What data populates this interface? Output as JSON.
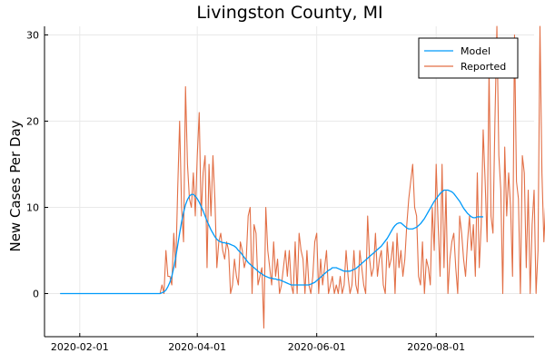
{
  "chart_data": {
    "type": "line",
    "title": "Livingston County, MI",
    "xlabel": "",
    "ylabel": "New Cases Per Day",
    "x_start": "2020-01-22",
    "xlim": [
      "2020-01-14",
      "2020-09-20"
    ],
    "ylim": [
      -5,
      31
    ],
    "yticks": [
      0,
      10,
      20,
      30
    ],
    "xticks": [
      "2020-02-01",
      "2020-04-01",
      "2020-06-01",
      "2020-08-01"
    ],
    "grid": true,
    "legend": {
      "position": "top-right"
    },
    "series": [
      {
        "name": "Model",
        "color": "#009AFA",
        "values": [
          0,
          0,
          0,
          0,
          0,
          0,
          0,
          0,
          0,
          0,
          0,
          0,
          0,
          0,
          0,
          0,
          0,
          0,
          0,
          0,
          0,
          0,
          0,
          0,
          0,
          0,
          0,
          0,
          0,
          0,
          0,
          0,
          0,
          0,
          0,
          0,
          0,
          0,
          0,
          0,
          0,
          0,
          0,
          0,
          0,
          0,
          0,
          0,
          0,
          0,
          0,
          0,
          0.1,
          0.2,
          0.4,
          0.8,
          1.3,
          2.0,
          3.0,
          4.2,
          5.6,
          7.0,
          8.3,
          9.4,
          10.3,
          10.9,
          11.3,
          11.5,
          11.5,
          11.3,
          11.0,
          10.6,
          10.1,
          9.6,
          9.0,
          8.4,
          7.9,
          7.4,
          7.0,
          6.6,
          6.3,
          6.1,
          6.0,
          5.9,
          5.9,
          5.8,
          5.8,
          5.7,
          5.6,
          5.5,
          5.3,
          5.0,
          4.8,
          4.5,
          4.2,
          3.9,
          3.6,
          3.4,
          3.2,
          3.0,
          2.8,
          2.6,
          2.4,
          2.3,
          2.1,
          2.0,
          1.9,
          1.8,
          1.8,
          1.7,
          1.7,
          1.6,
          1.6,
          1.5,
          1.4,
          1.3,
          1.2,
          1.1,
          1.0,
          1.0,
          1.0,
          1.0,
          1.0,
          1.0,
          1.0,
          1.0,
          1.0,
          1.0,
          1.1,
          1.2,
          1.3,
          1.5,
          1.7,
          1.9,
          2.1,
          2.3,
          2.5,
          2.7,
          2.8,
          3.0,
          3.0,
          3.0,
          2.9,
          2.8,
          2.7,
          2.6,
          2.6,
          2.6,
          2.6,
          2.7,
          2.8,
          2.9,
          3.1,
          3.3,
          3.5,
          3.7,
          3.9,
          4.1,
          4.3,
          4.5,
          4.7,
          4.9,
          5.1,
          5.3,
          5.5,
          5.8,
          6.1,
          6.4,
          6.8,
          7.2,
          7.6,
          7.9,
          8.1,
          8.2,
          8.2,
          8.0,
          7.8,
          7.6,
          7.5,
          7.5,
          7.5,
          7.6,
          7.7,
          7.9,
          8.1,
          8.4,
          8.7,
          9.1,
          9.5,
          9.9,
          10.3,
          10.7,
          11.0,
          11.3,
          11.6,
          11.8,
          12.0,
          12.0,
          12.0,
          11.9,
          11.8,
          11.6,
          11.3,
          11.0,
          10.7,
          10.3,
          9.9,
          9.6,
          9.3,
          9.1,
          8.9,
          8.8,
          8.8,
          8.9,
          8.9,
          8.9,
          8.9
        ]
      },
      {
        "name": "Reported",
        "color": "#E26F46",
        "values": [
          0,
          0,
          0,
          0,
          0,
          0,
          0,
          0,
          0,
          0,
          0,
          0,
          0,
          0,
          0,
          0,
          0,
          0,
          0,
          0,
          0,
          0,
          0,
          0,
          0,
          0,
          0,
          0,
          0,
          0,
          0,
          0,
          0,
          0,
          0,
          0,
          0,
          0,
          0,
          0,
          0,
          0,
          0,
          0,
          0,
          0,
          0,
          0,
          0,
          0,
          0,
          0,
          1,
          0,
          5,
          2,
          2,
          1,
          7,
          3,
          12,
          20,
          10,
          6,
          24,
          15,
          11,
          10,
          14,
          9,
          16,
          21,
          9,
          14,
          16,
          3,
          15,
          9,
          16,
          11,
          3,
          6,
          7,
          5,
          4,
          6,
          5,
          0,
          1,
          4,
          2,
          1,
          6,
          5,
          3,
          4,
          9,
          10,
          0,
          8,
          7,
          1,
          2,
          3,
          -4,
          10,
          5,
          3,
          1,
          6,
          2,
          4,
          0,
          1,
          3,
          5,
          2,
          5,
          1,
          0,
          6,
          0,
          7,
          5,
          4,
          0,
          5,
          1,
          0,
          2,
          6,
          7,
          0,
          4,
          1,
          3,
          5,
          0,
          1,
          2,
          0,
          1,
          0,
          2,
          0,
          1,
          5,
          2,
          0,
          1,
          5,
          1,
          0,
          5,
          3,
          1,
          0,
          9,
          4,
          2,
          3,
          7,
          2,
          4,
          5,
          1,
          0,
          6,
          3,
          4,
          6,
          0,
          7,
          3,
          5,
          2,
          4,
          8,
          11,
          13,
          15,
          10,
          9,
          2,
          1,
          6,
          0,
          4,
          3,
          1,
          10,
          5,
          15,
          8,
          2,
          15,
          3,
          12,
          0,
          4,
          6,
          7,
          3,
          0,
          9,
          7,
          4,
          2,
          6,
          9,
          5,
          8,
          2,
          14,
          3,
          8,
          19,
          13,
          6,
          26,
          9,
          7,
          20,
          31,
          16,
          12,
          0,
          17,
          9,
          14,
          10,
          2,
          30,
          13,
          11,
          0,
          16,
          14,
          3,
          12,
          0,
          8,
          12,
          0,
          5,
          31,
          14,
          6,
          11,
          9,
          0,
          20
        ]
      }
    ]
  }
}
